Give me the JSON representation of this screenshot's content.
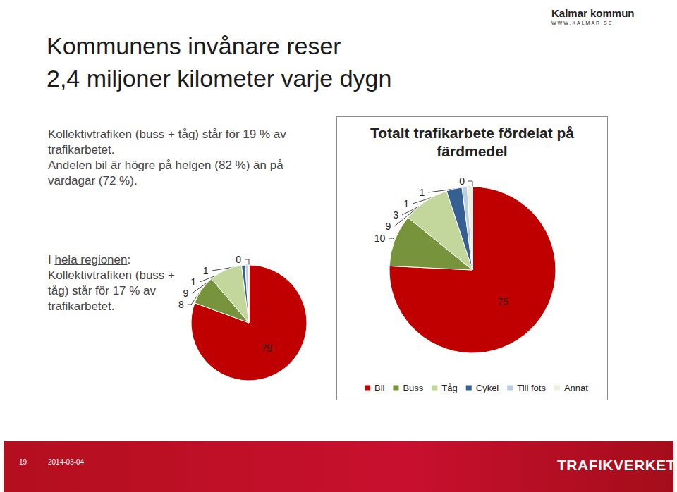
{
  "slide": {
    "title": [
      "Kommunens invånare reser",
      "2,4 miljoner kilometer varje dygn"
    ],
    "text": [
      "Kollektivtrafiken (buss + tåg) står för 19 % av trafikarbetet.",
      "Andelen bil är högre på helgen (82 %) än på vardagar (72 %)."
    ],
    "region_text": {
      "prefix": "I ",
      "underlined": "hela regionen",
      "rest": ": Kollektivtrafiken (buss + tåg) står för 17 % av trafikarbetet."
    },
    "page_number": "19",
    "date": "2014-03-04",
    "logo_top": {
      "name": "Kalmar kommun",
      "url": "WWW.KALMAR.SE"
    },
    "logo_bottom": "TRAFIKVERKET"
  },
  "chart_data": [
    {
      "type": "pie",
      "title": "Totalt trafikarbete fördelat på färdmedel",
      "categories": [
        "Bil",
        "Buss",
        "Tåg",
        "Cykel",
        "Till fots",
        "Annat",
        null
      ],
      "values": [
        75,
        10,
        9,
        3,
        1,
        1,
        0
      ],
      "colors": [
        "#c00000",
        "#77933c",
        "#c3d69b",
        "#376092",
        "#b9cde5",
        "#ebf1de",
        "#d7e4bd"
      ],
      "data_labels": true,
      "legend": "bottom"
    },
    {
      "type": "pie",
      "categories": [
        "Bil",
        "Buss",
        "Tåg",
        "Cykel",
        "Till fots",
        "Annat"
      ],
      "values": [
        79,
        8,
        9,
        1,
        1,
        0
      ],
      "colors": [
        "#c00000",
        "#77933c",
        "#c3d69b",
        "#376092",
        "#b9cde5",
        "#ebf1de"
      ],
      "data_labels": true
    }
  ]
}
